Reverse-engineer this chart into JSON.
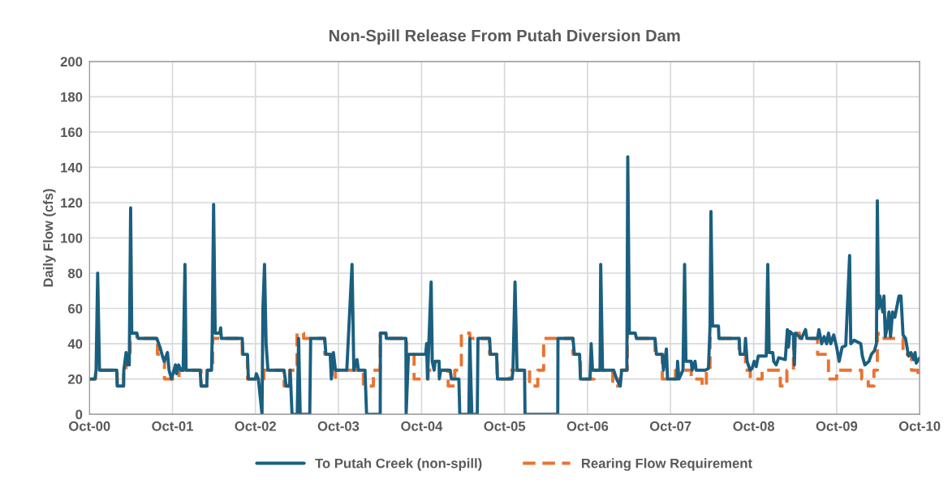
{
  "chart_data": {
    "type": "line",
    "title": "Non-Spill Release From Putah Diversion Dam",
    "ylabel": "Daily Flow (cfs)",
    "xlim": [
      "2000-10-01",
      "2010-10-01"
    ],
    "xticks": [
      {
        "value": "2000-10-01",
        "label": "Oct-00"
      },
      {
        "value": "2001-10-01",
        "label": "Oct-01"
      },
      {
        "value": "2002-10-01",
        "label": "Oct-02"
      },
      {
        "value": "2003-10-01",
        "label": "Oct-03"
      },
      {
        "value": "2004-10-01",
        "label": "Oct-04"
      },
      {
        "value": "2005-10-01",
        "label": "Oct-05"
      },
      {
        "value": "2006-10-01",
        "label": "Oct-06"
      },
      {
        "value": "2007-10-01",
        "label": "Oct-07"
      },
      {
        "value": "2008-10-01",
        "label": "Oct-08"
      },
      {
        "value": "2009-10-01",
        "label": "Oct-09"
      },
      {
        "value": "2010-10-01",
        "label": "Oct-10"
      }
    ],
    "ylim": [
      0,
      200
    ],
    "yticks": [
      0,
      20,
      40,
      60,
      80,
      100,
      120,
      140,
      160,
      180,
      200
    ],
    "grid": true,
    "legend": "bottom",
    "series": [
      {
        "name": "To Putah Creek (non-spill)",
        "color": "#1a5f80",
        "line_style": "solid",
        "x": [
          "2000-10-01",
          "2000-10-25",
          "2000-10-30",
          "2000-11-06",
          "2000-11-14",
          "2001-01-29",
          "2001-01-31",
          "2001-02-28",
          "2001-03-01",
          "2001-03-11",
          "2001-03-18",
          "2001-03-25",
          "2001-03-31",
          "2001-04-05",
          "2001-04-27",
          "2001-05-03",
          "2001-07-24",
          "2001-08-07",
          "2001-08-18",
          "2001-08-26",
          "2001-09-09",
          "2001-09-16",
          "2001-09-27",
          "2001-10-14",
          "2001-10-19",
          "2001-10-28",
          "2001-11-07",
          "2001-11-17",
          "2001-11-25",
          "2001-11-30",
          "2002-01-31",
          "2002-02-04",
          "2002-03-01",
          "2002-03-03",
          "2002-03-22",
          "2002-03-25",
          "2002-03-31",
          "2002-04-07",
          "2002-04-27",
          "2002-05-01",
          "2002-05-04",
          "2002-08-04",
          "2002-08-07",
          "2002-08-27",
          "2002-08-31",
          "2002-10-01",
          "2002-10-05",
          "2002-10-14",
          "2002-10-30",
          "2002-11-03",
          "2002-11-10",
          "2002-11-17",
          "2002-11-25",
          "2003-02-04",
          "2003-02-13",
          "2003-02-28",
          "2003-03-03",
          "2003-03-11",
          "2003-04-03",
          "2003-04-09",
          "2003-04-16",
          "2003-05-28",
          "2003-06-01",
          "2003-08-02",
          "2003-08-07",
          "2003-08-26",
          "2003-08-31",
          "2003-09-09",
          "2003-09-18",
          "2003-11-07",
          "2003-11-30",
          "2003-12-08",
          "2003-12-22",
          "2003-12-28",
          "2004-01-26",
          "2004-02-02",
          "2004-04-02",
          "2004-04-03",
          "2004-04-27",
          "2004-04-29",
          "2004-07-24",
          "2004-07-25",
          "2004-08-04",
          "2004-10-19",
          "2004-10-23",
          "2004-10-27",
          "2004-11-12",
          "2004-11-17",
          "2004-11-25",
          "2004-11-30",
          "2004-12-17",
          "2004-12-18",
          "2004-12-24",
          "2005-02-04",
          "2005-02-09",
          "2005-03-14",
          "2005-03-18",
          "2005-04-27",
          "2005-05-01",
          "2005-05-10",
          "2005-06-03",
          "2005-06-06",
          "2005-07-27",
          "2005-07-31",
          "2005-08-27",
          "2005-08-31",
          "2005-11-03",
          "2005-11-07",
          "2005-11-16",
          "2005-11-25",
          "2005-12-28",
          "2005-12-30",
          "2006-05-23",
          "2006-05-24",
          "2006-07-29",
          "2006-08-04",
          "2006-08-27",
          "2006-08-31",
          "2006-10-12",
          "2006-10-17",
          "2006-10-23",
          "2006-10-27",
          "2006-11-25",
          "2006-11-28",
          "2006-12-06",
          "2007-01-24",
          "2007-02-06",
          "2007-02-22",
          "2007-02-28",
          "2007-03-23",
          "2007-03-27",
          "2007-04-03",
          "2007-04-29",
          "2007-05-04",
          "2007-07-25",
          "2007-07-31",
          "2007-08-26",
          "2007-08-31",
          "2007-09-13",
          "2007-09-18",
          "2007-10-30",
          "2007-11-01",
          "2007-11-07",
          "2007-11-25",
          "2007-12-02",
          "2007-12-08",
          "2007-12-31",
          "2008-01-04",
          "2008-01-17",
          "2008-01-22",
          "2008-03-03",
          "2008-03-16",
          "2008-03-23",
          "2008-03-27",
          "2008-04-03",
          "2008-04-29",
          "2008-05-01",
          "2008-07-29",
          "2008-08-02",
          "2008-08-22",
          "2008-08-26",
          "2008-09-02",
          "2008-09-15",
          "2008-09-24",
          "2008-10-03",
          "2008-10-12",
          "2008-10-21",
          "2008-11-25",
          "2008-12-02",
          "2008-12-08",
          "2008-12-24",
          "2008-12-28",
          "2009-01-08",
          "2009-01-19",
          "2009-02-17",
          "2009-02-26",
          "2009-03-03",
          "2009-03-09",
          "2009-03-25",
          "2009-03-29",
          "2009-04-02",
          "2009-04-29",
          "2009-05-17",
          "2009-05-23",
          "2009-07-09",
          "2009-07-15",
          "2009-07-27",
          "2009-08-07",
          "2009-08-18",
          "2009-08-26",
          "2009-09-05",
          "2009-09-18",
          "2009-10-01",
          "2009-10-12",
          "2009-10-25",
          "2009-11-10",
          "2009-11-27",
          "2009-12-02",
          "2009-12-17",
          "2010-01-15",
          "2010-01-22",
          "2010-02-02",
          "2010-02-20",
          "2010-03-03",
          "2010-03-16",
          "2010-03-25",
          "2010-03-29",
          "2010-04-03",
          "2010-04-09",
          "2010-04-22",
          "2010-04-27",
          "2010-05-03",
          "2010-05-12",
          "2010-05-19",
          "2010-05-26",
          "2010-06-04",
          "2010-06-14",
          "2010-07-02",
          "2010-07-11",
          "2010-07-20",
          "2010-07-31",
          "2010-08-13",
          "2010-08-24",
          "2010-09-05",
          "2010-09-11",
          "2010-09-16",
          "2010-10-01"
        ],
        "values": [
          20,
          20,
          25,
          80,
          25,
          25,
          16,
          16,
          25,
          35,
          28,
          28,
          117,
          46,
          46,
          43,
          43,
          38,
          33,
          30,
          35,
          25,
          20,
          28,
          23,
          28,
          25,
          25,
          85,
          25,
          25,
          16,
          16,
          25,
          25,
          45,
          119,
          46,
          46,
          49,
          43,
          43,
          34,
          34,
          20,
          20,
          23,
          20,
          0,
          60,
          85,
          40,
          25,
          25,
          16,
          16,
          25,
          0,
          0,
          43,
          0,
          0,
          43,
          43,
          34,
          34,
          20,
          35,
          25,
          25,
          85,
          25,
          31,
          25,
          25,
          0,
          0,
          46,
          46,
          43,
          43,
          0,
          34,
          34,
          40,
          20,
          75,
          30,
          25,
          30,
          30,
          20,
          25,
          25,
          20,
          20,
          0,
          0,
          43,
          0,
          0,
          43,
          43,
          34,
          34,
          20,
          20,
          25,
          75,
          25,
          25,
          0,
          0,
          43,
          43,
          34,
          34,
          20,
          20,
          40,
          25,
          25,
          25,
          85,
          25,
          25,
          20,
          16,
          25,
          25,
          146,
          46,
          46,
          43,
          43,
          34,
          34,
          25,
          37,
          20,
          20,
          30,
          20,
          25,
          85,
          30,
          30,
          25,
          30,
          25,
          25,
          26,
          50,
          115,
          50,
          50,
          43,
          43,
          34,
          34,
          43,
          30,
          25,
          26,
          30,
          27,
          33,
          33,
          85,
          35,
          35,
          30,
          28,
          32,
          31,
          48,
          38,
          47,
          45,
          28,
          46,
          43,
          48,
          43,
          43,
          48,
          40,
          44,
          40,
          46,
          40,
          45,
          38,
          30,
          38,
          39,
          90,
          40,
          42,
          40,
          33,
          28,
          30,
          34,
          36,
          40,
          121,
          60,
          67,
          58,
          67,
          44,
          50,
          58,
          44,
          58,
          55,
          67,
          67,
          45,
          43,
          33,
          35,
          31,
          35,
          29,
          32
        ]
      },
      {
        "name": "Rearing Flow Requirement",
        "color": "#e87431",
        "type": "step",
        "line_style": "dashed",
        "x": [
          "2000-10-01",
          "2000-10-28",
          "2001-01-31",
          "2001-02-28",
          "2001-03-11",
          "2001-03-29",
          "2001-04-27",
          "2001-07-27",
          "2001-08-27",
          "2001-10-30",
          "2002-02-04",
          "2002-03-03",
          "2002-03-27",
          "2002-08-04",
          "2002-08-27",
          "2002-11-07",
          "2003-02-04",
          "2003-02-28",
          "2003-04-02",
          "2003-05-01",
          "2003-08-02",
          "2003-09-02",
          "2003-09-18",
          "2004-01-19",
          "2004-03-03",
          "2004-04-02",
          "2004-04-27",
          "2004-07-27",
          "2004-08-29",
          "2004-10-30",
          "2005-01-26",
          "2005-02-24",
          "2005-03-25",
          "2005-05-01",
          "2005-07-27",
          "2005-08-29",
          "2005-10-23",
          "2006-01-19",
          "2006-02-24",
          "2006-03-22",
          "2006-07-29",
          "2006-08-31",
          "2006-10-30",
          "2007-01-20",
          "2007-02-20",
          "2007-03-25",
          "2007-04-29",
          "2007-07-25",
          "2007-08-26",
          "2007-10-23",
          "2007-12-31",
          "2008-02-17",
          "2008-03-07",
          "2008-03-23",
          "2008-07-29",
          "2008-08-26",
          "2008-09-16",
          "2008-11-07",
          "2009-01-26",
          "2009-02-24",
          "2009-03-25",
          "2009-04-20",
          "2009-07-09",
          "2009-08-26",
          "2009-10-01",
          "2010-01-19",
          "2010-02-17",
          "2010-03-14",
          "2010-03-29",
          "2010-04-02",
          "2010-07-20",
          "2010-08-26",
          "2010-09-24",
          "2010-10-01"
        ],
        "values": [
          20,
          25,
          16,
          25,
          35,
          46,
          43,
          34,
          20,
          25,
          16,
          25,
          43,
          34,
          20,
          25,
          16,
          25,
          46,
          43,
          34,
          20,
          25,
          16,
          25,
          46,
          43,
          34,
          20,
          25,
          16,
          25,
          46,
          43,
          34,
          20,
          25,
          16,
          25,
          43,
          34,
          20,
          25,
          16,
          25,
          46,
          43,
          34,
          20,
          25,
          20,
          16,
          25,
          43,
          34,
          25,
          20,
          25,
          16,
          25,
          46,
          43,
          34,
          20,
          25,
          20,
          16,
          25,
          46,
          43,
          34,
          25,
          20,
          20
        ]
      }
    ]
  }
}
